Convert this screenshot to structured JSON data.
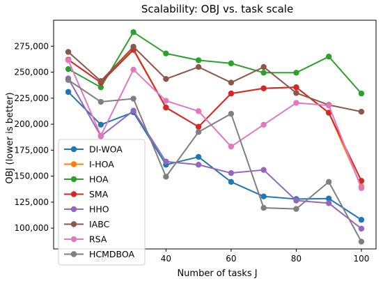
{
  "chart_data": {
    "type": "line",
    "title": "Scalability: OBJ vs. task scale",
    "xlabel": "Number of tasks J",
    "ylabel": "OBJ (lower is better)",
    "xlim": [
      5.5,
      104.5
    ],
    "ylim": [
      80000,
      300000
    ],
    "xticks": [
      20,
      40,
      60,
      80,
      100
    ],
    "xtick_labels": [
      "20",
      "40",
      "60",
      "80",
      "100"
    ],
    "yticks": [
      100000,
      125000,
      150000,
      175000,
      200000,
      225000,
      250000,
      275000
    ],
    "ytick_labels": [
      "100,000",
      "125,000",
      "150,000",
      "175,000",
      "200,000",
      "225,000",
      "250,000",
      "275,000"
    ],
    "grid": false,
    "legend_position": "lower-left",
    "x": [
      10,
      20,
      30,
      40,
      50,
      60,
      70,
      80,
      90,
      100
    ],
    "series": [
      {
        "name": "DI-WOA",
        "color": "#1f77b4",
        "values": [
          231000,
          199500,
          211500,
          161000,
          168500,
          144500,
          130500,
          128000,
          128500,
          108000
        ]
      },
      {
        "name": "I-HOA",
        "color": "#ff7f0e",
        "values": [
          262000,
          240000,
          272500,
          216000,
          197500,
          229500,
          234500,
          235500,
          211000,
          140000
        ]
      },
      {
        "name": "HOA",
        "color": "#2ca02c",
        "values": [
          253000,
          235500,
          288500,
          268000,
          261500,
          258500,
          249500,
          249500,
          265000,
          229500
        ]
      },
      {
        "name": "SMA",
        "color": "#d62728",
        "values": [
          262000,
          240000,
          271500,
          216000,
          197500,
          229500,
          234500,
          235500,
          211000,
          145500
        ]
      },
      {
        "name": "HHO",
        "color": "#9467bd",
        "values": [
          244000,
          188500,
          213000,
          164000,
          161000,
          153000,
          156000,
          126500,
          124000,
          99500
        ]
      },
      {
        "name": "IABC",
        "color": "#8c564b",
        "values": [
          269500,
          241500,
          274500,
          243500,
          255000,
          240000,
          255000,
          230000,
          218500,
          212000
        ]
      },
      {
        "name": "RSA",
        "color": "#e377c2",
        "values": [
          261500,
          189000,
          252500,
          222500,
          212500,
          178500,
          199500,
          220500,
          218000,
          138500
        ]
      },
      {
        "name": "HCMDBOA",
        "color": "#7f7f7f",
        "values": [
          242500,
          221500,
          224500,
          149500,
          192500,
          210000,
          119500,
          118500,
          144500,
          87000
        ]
      }
    ]
  }
}
